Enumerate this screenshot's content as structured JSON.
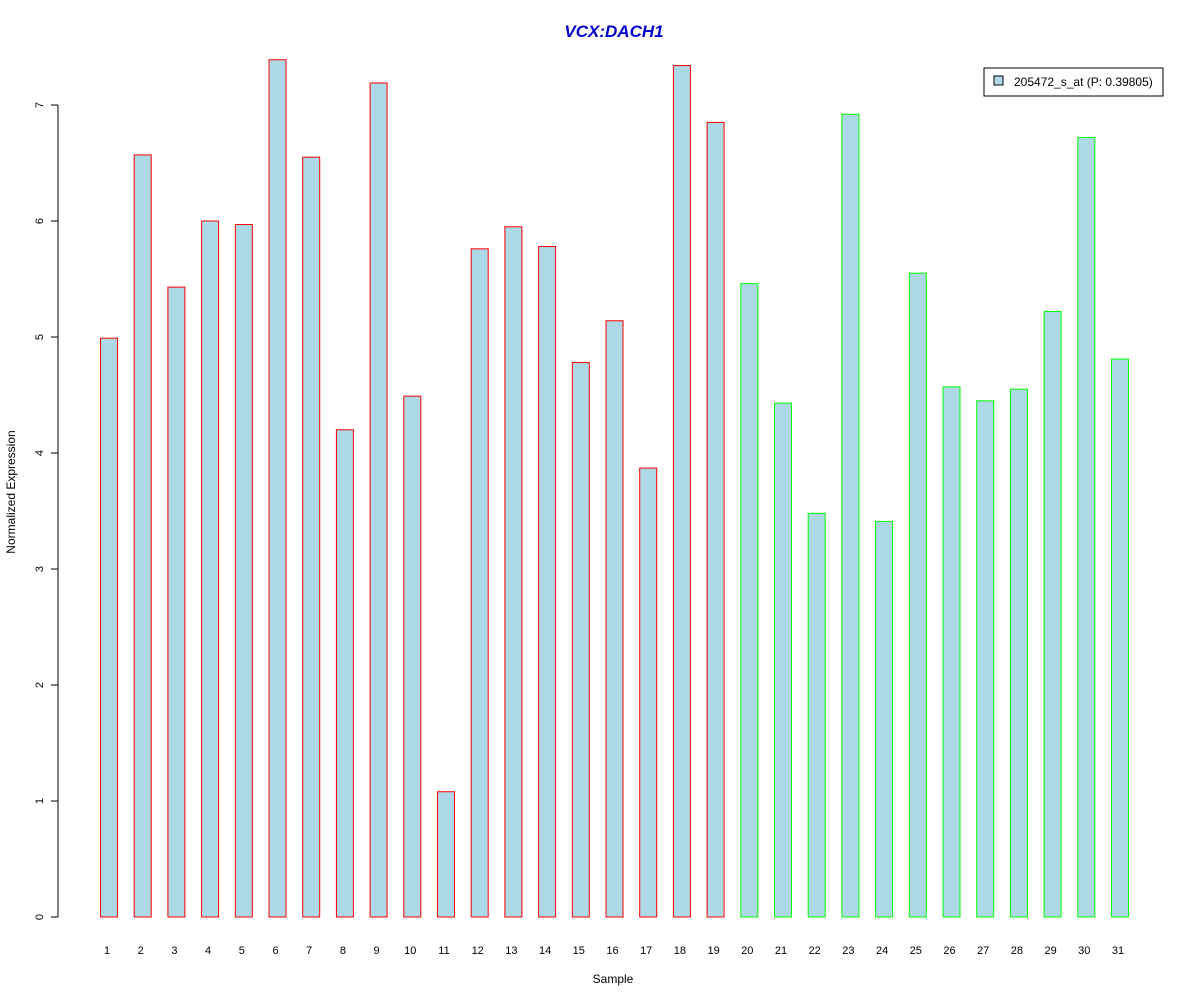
{
  "chart_data": {
    "type": "bar",
    "title": "VCX:DACH1",
    "xlabel": "Sample",
    "ylabel": "Normalized Expression",
    "ylim": [
      0,
      7.4
    ],
    "yticks": [
      0,
      1,
      2,
      3,
      4,
      5,
      6,
      7
    ],
    "grid": false,
    "legend_position": "top-right",
    "categories": [
      "1",
      "2",
      "3",
      "4",
      "5",
      "6",
      "7",
      "8",
      "9",
      "10",
      "11",
      "12",
      "13",
      "14",
      "15",
      "16",
      "17",
      "18",
      "19",
      "20",
      "21",
      "22",
      "23",
      "24",
      "25",
      "26",
      "27",
      "28",
      "29",
      "30",
      "31"
    ],
    "series": [
      {
        "name": "205472_s_at (P: 0.39805)",
        "values": [
          4.99,
          6.57,
          5.43,
          6.0,
          5.97,
          7.39,
          6.55,
          4.2,
          7.19,
          4.49,
          1.08,
          5.76,
          5.95,
          5.78,
          4.78,
          5.14,
          3.87,
          7.34,
          6.85,
          5.46,
          4.43,
          3.48,
          6.92,
          3.41,
          5.55,
          4.57,
          4.45,
          4.55,
          5.22,
          6.72,
          4.81
        ],
        "groups": [
          "red",
          "red",
          "red",
          "red",
          "red",
          "red",
          "red",
          "red",
          "red",
          "red",
          "red",
          "red",
          "red",
          "red",
          "red",
          "red",
          "red",
          "red",
          "red",
          "green",
          "green",
          "green",
          "green",
          "green",
          "green",
          "green",
          "green",
          "green",
          "green",
          "green",
          "green"
        ]
      }
    ],
    "colors": {
      "bar_fill": "#add8e6",
      "group_red": "#ff0000",
      "group_green": "#00ff00",
      "title": "#0000cd",
      "axis": "#000000"
    }
  }
}
